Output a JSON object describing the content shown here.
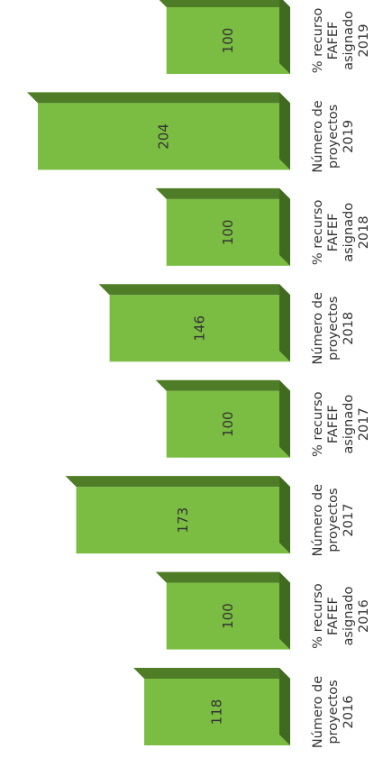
{
  "chart_data": {
    "type": "bar",
    "orientation": "horizontal-3d",
    "categories": [
      "Número de proyectos 2016",
      "% recurso FAFEF asignado 2016",
      "Número de proyectos 2017",
      "% recurso FAFEF asignado 2017",
      "Número de proyectos 2018",
      "% recurso FAFEF asignado 2018",
      "Número de proyectos 2019",
      "% recurso FAFEF asignado 2019"
    ],
    "category_lines": [
      [
        "Número de",
        "proyectos",
        "2016"
      ],
      [
        "% recurso",
        "FAFEF",
        "asignado",
        "2016"
      ],
      [
        "Número de",
        "proyectos",
        "2017"
      ],
      [
        "% recurso",
        "FAFEF",
        "asignado",
        "2017"
      ],
      [
        "Número de",
        "proyectos",
        "2018"
      ],
      [
        "% recurso",
        "FAFEF",
        "asignado",
        "2018"
      ],
      [
        "Número de",
        "proyectos",
        "2019"
      ],
      [
        "% recurso",
        "FAFEF",
        "asignado",
        "2019"
      ]
    ],
    "values": [
      118,
      100,
      173,
      100,
      146,
      100,
      204,
      100
    ],
    "data_labels": [
      "118",
      "100",
      "173",
      "100",
      "146",
      "100",
      "204",
      "100"
    ],
    "colors": {
      "bar_front": "#7bbd42",
      "bar_top": "#4f7d27",
      "bar_side": "#3f6a1f",
      "label": "#333333"
    },
    "grid": false,
    "legend": "none"
  }
}
